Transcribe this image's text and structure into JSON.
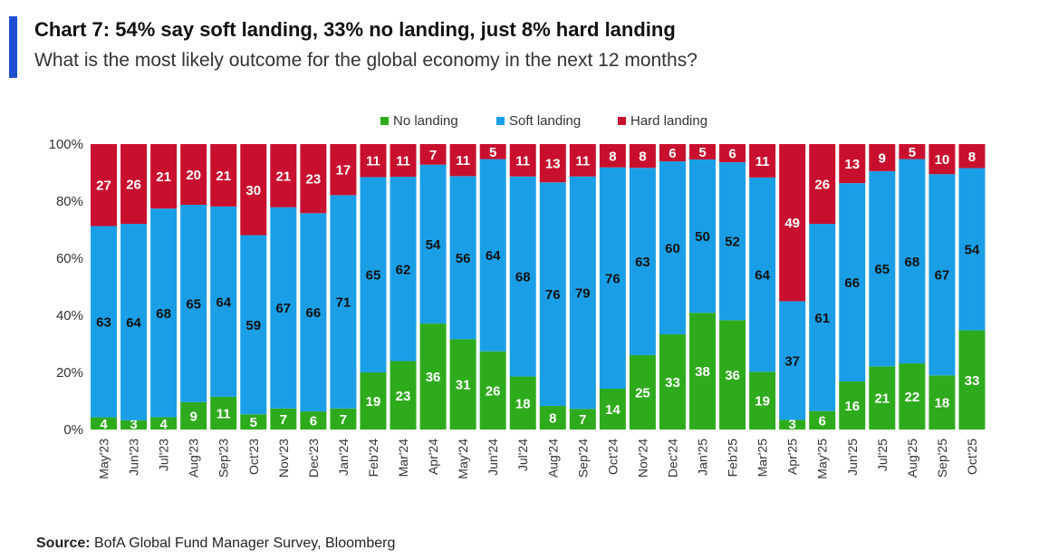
{
  "header": {
    "title": "Chart 7: 54% say soft landing, 33% no landing, just 8% hard landing",
    "subtitle": "What is the most likely outcome for the global economy in the next 12 months?"
  },
  "footer": {
    "source_label": "Source:",
    "source_text": "BofA Global Fund Manager Survey, Bloomberg"
  },
  "colors": {
    "accent": "#1f4fd1",
    "no_landing": "#2eab1c",
    "soft_landing": "#1a9fe6",
    "hard_landing": "#c8102e"
  },
  "chart_data": {
    "type": "bar",
    "stacked": true,
    "title": "Chart 7: 54% say soft landing, 33% no landing, just 8% hard landing",
    "subtitle": "What is the most likely outcome for the global economy in the next 12 months?",
    "xlabel": "",
    "ylabel": "",
    "ylim": [
      0,
      100
    ],
    "y_ticks": [
      "0%",
      "20%",
      "40%",
      "60%",
      "80%",
      "100%"
    ],
    "grid": false,
    "legend_position": "top",
    "categories": [
      "May'23",
      "Jun'23",
      "Jul'23",
      "Aug'23",
      "Sep'23",
      "Oct'23",
      "Nov'23",
      "Dec'23",
      "Jan'24",
      "Feb'24",
      "Mar'24",
      "Apr'24",
      "May'24",
      "Jun'24",
      "Jul'24",
      "Aug'24",
      "Sep'24",
      "Oct'24",
      "Nov'24",
      "Dec'24",
      "Jan'25",
      "Feb'25",
      "Mar'25",
      "Apr'25",
      "May'25",
      "Jun'25",
      "Jul'25",
      "Aug'25",
      "Sep'25",
      "Oct'25"
    ],
    "series": [
      {
        "name": "No landing",
        "color": "#2eab1c",
        "values": [
          4,
          3,
          4,
          9,
          11,
          5,
          7,
          6,
          7,
          19,
          23,
          36,
          31,
          26,
          18,
          8,
          7,
          14,
          25,
          33,
          38,
          36,
          19,
          3,
          6,
          16,
          21,
          22,
          18,
          33
        ]
      },
      {
        "name": "Soft landing",
        "color": "#1a9fe6",
        "values": [
          63,
          64,
          68,
          65,
          64,
          59,
          67,
          66,
          71,
          65,
          62,
          54,
          56,
          64,
          68,
          76,
          79,
          76,
          63,
          60,
          50,
          52,
          64,
          37,
          61,
          66,
          65,
          68,
          67,
          54
        ]
      },
      {
        "name": "Hard landing",
        "color": "#c8102e",
        "values": [
          27,
          26,
          21,
          20,
          21,
          30,
          21,
          23,
          17,
          11,
          11,
          7,
          11,
          5,
          11,
          13,
          11,
          8,
          8,
          6,
          5,
          6,
          11,
          49,
          26,
          13,
          9,
          5,
          10,
          8
        ]
      }
    ]
  }
}
